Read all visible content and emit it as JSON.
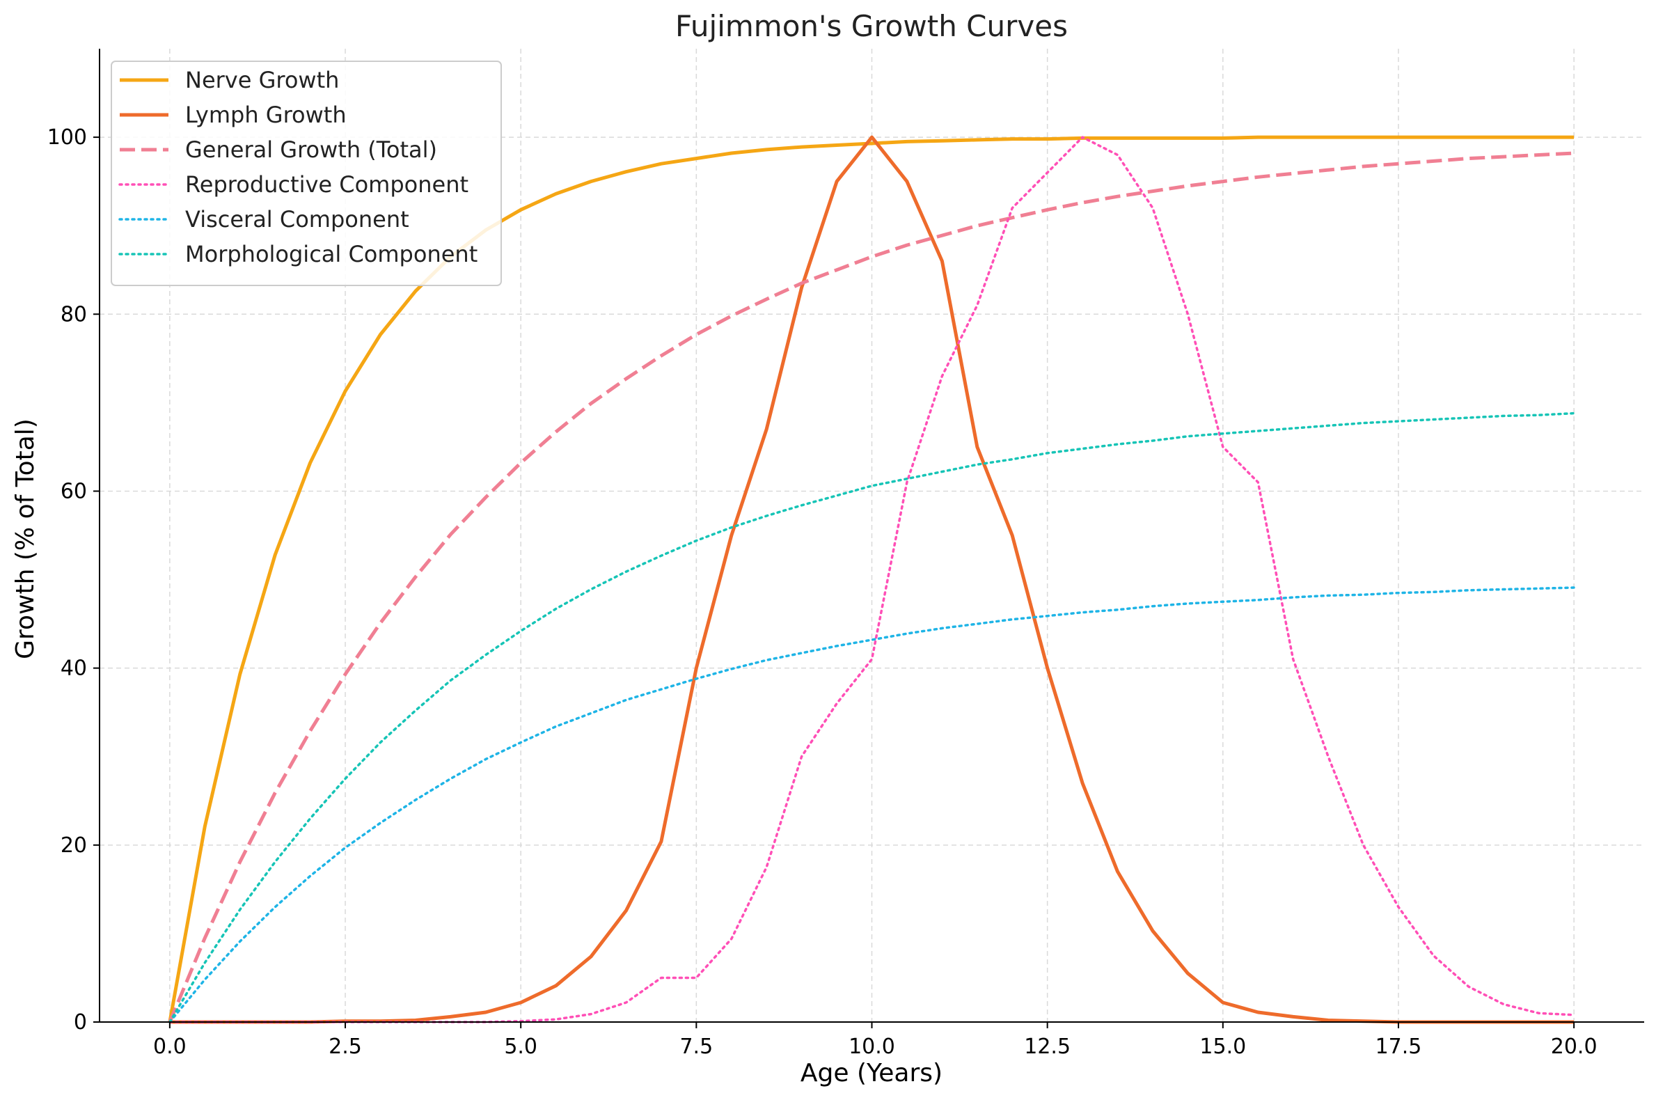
{
  "chart_data": {
    "type": "line",
    "title": "Fujimmon's Growth Curves",
    "xlabel": "Age (Years)",
    "ylabel": "Growth (% of Total)",
    "xlim": [
      -1,
      21
    ],
    "ylim": [
      0,
      110
    ],
    "x_ticks": [
      0,
      2.5,
      5,
      7.5,
      10,
      12.5,
      15,
      17.5,
      20
    ],
    "x_tick_labels": [
      "0.0",
      "2.5",
      "5.0",
      "7.5",
      "10.0",
      "12.5",
      "15.0",
      "17.5",
      "20.0"
    ],
    "y_ticks": [
      0,
      20,
      40,
      60,
      80,
      100
    ],
    "y_tick_labels": [
      "0",
      "20",
      "40",
      "60",
      "80",
      "100"
    ],
    "grid": true,
    "legend_position": "top-left",
    "x": [
      0,
      0.5,
      1,
      1.5,
      2,
      2.5,
      3,
      3.5,
      4,
      4.5,
      5,
      5.5,
      6,
      6.5,
      7,
      7.5,
      8,
      8.5,
      9,
      9.5,
      10,
      10.5,
      11,
      11.5,
      12,
      12.5,
      13,
      13.5,
      14,
      14.5,
      15,
      15.5,
      16,
      16.5,
      17,
      17.5,
      18,
      18.5,
      19,
      19.5,
      20
    ],
    "series": [
      {
        "name": "Nerve Growth",
        "color": "#F5A614",
        "style": "solid",
        "values": [
          0,
          22.1,
          39.3,
          52.8,
          63.2,
          71.3,
          77.7,
          82.6,
          86.5,
          89.5,
          91.8,
          93.6,
          95.0,
          96.1,
          97.0,
          97.6,
          98.2,
          98.6,
          98.9,
          99.1,
          99.3,
          99.5,
          99.6,
          99.7,
          99.8,
          99.8,
          99.9,
          99.9,
          99.9,
          99.9,
          99.9,
          100,
          100,
          100,
          100,
          100,
          100,
          100,
          100,
          100,
          100
        ]
      },
      {
        "name": "Lymph Growth",
        "color": "#EE6B2B",
        "style": "solid",
        "values": [
          0,
          0,
          0,
          0,
          0,
          0.1,
          0.1,
          0.2,
          0.6,
          1.1,
          2.2,
          4.1,
          7.4,
          12.6,
          20.4,
          40.0,
          55.0,
          67.0,
          83.0,
          95.0,
          100,
          95.0,
          86.0,
          65.0,
          55.0,
          40.0,
          27.0,
          17.0,
          10.3,
          5.5,
          2.2,
          1.1,
          0.6,
          0.2,
          0.1,
          0,
          0,
          0,
          0,
          0,
          0
        ]
      },
      {
        "name": "General Growth (Total)",
        "color": "#F07F93",
        "style": "dashed",
        "values": [
          0,
          9.5,
          18.1,
          25.9,
          32.9,
          39.3,
          45.1,
          50.3,
          55.1,
          59.3,
          63.2,
          66.7,
          69.9,
          72.7,
          75.3,
          77.7,
          79.8,
          81.7,
          83.5,
          85.0,
          86.5,
          87.8,
          88.9,
          90.0,
          90.9,
          91.8,
          92.6,
          93.3,
          93.9,
          94.5,
          95.0,
          95.5,
          95.9,
          96.3,
          96.7,
          97.0,
          97.3,
          97.6,
          97.8,
          98.0,
          98.2
        ]
      },
      {
        "name": "Reproductive Component",
        "color": "#FF4FB6",
        "style": "dotted",
        "values": [
          0,
          0,
          0,
          0,
          0,
          0,
          0,
          0,
          0,
          0,
          0.1,
          0.3,
          0.9,
          2.2,
          5.0,
          5.0,
          9.4,
          17.5,
          30.0,
          36.0,
          41.0,
          61.0,
          73.0,
          81.0,
          92.0,
          96.0,
          100,
          98.0,
          92.0,
          80.0,
          65.0,
          61.0,
          41.0,
          30.0,
          20.0,
          13.0,
          7.5,
          4.0,
          2.0,
          1.0,
          0.8
        ]
      },
      {
        "name": "Visceral Component",
        "color": "#1EB4E6",
        "style": "dotted",
        "values": [
          0,
          4.8,
          9.1,
          13.0,
          16.5,
          19.7,
          22.5,
          25.1,
          27.5,
          29.7,
          31.6,
          33.4,
          34.9,
          36.4,
          37.6,
          38.8,
          39.9,
          40.9,
          41.7,
          42.5,
          43.2,
          43.9,
          44.5,
          45.0,
          45.5,
          45.9,
          46.3,
          46.6,
          47.0,
          47.3,
          47.5,
          47.7,
          48.0,
          48.2,
          48.3,
          48.5,
          48.6,
          48.8,
          48.9,
          49.0,
          49.1
        ]
      },
      {
        "name": "Morphological Component",
        "color": "#16C4B6",
        "style": "dotted",
        "values": [
          0,
          6.7,
          12.7,
          18.1,
          23.0,
          27.5,
          31.6,
          35.2,
          38.6,
          41.5,
          44.2,
          46.7,
          48.9,
          50.9,
          52.7,
          54.4,
          55.9,
          57.2,
          58.4,
          59.5,
          60.6,
          61.4,
          62.2,
          63.0,
          63.6,
          64.3,
          64.8,
          65.3,
          65.7,
          66.2,
          66.5,
          66.8,
          67.1,
          67.4,
          67.7,
          67.9,
          68.1,
          68.3,
          68.5,
          68.6,
          68.8
        ]
      }
    ]
  }
}
